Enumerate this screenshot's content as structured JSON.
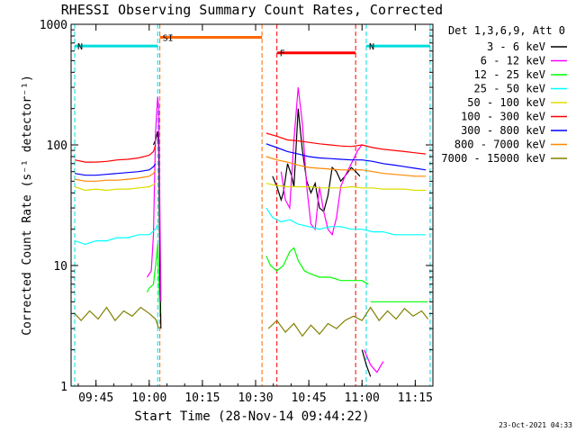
{
  "chart_data": {
    "type": "line",
    "title": "RHESSI Observing Summary Count Rates, Corrected",
    "xlabel": "Start Time (28-Nov-14 09:44:22)",
    "ylabel": "Corrected Count Rate (s⁻¹ detector⁻¹)",
    "footer": "23-Oct-2021 04:33",
    "y_scale": "log",
    "ylim": [
      1,
      1000
    ],
    "xlim_minutes": [
      9.633,
      11.333
    ],
    "x_ticks": [
      "09:45",
      "10:00",
      "10:15",
      "10:30",
      "10:45",
      "11:00",
      "11:15"
    ],
    "x_tick_minutes": [
      9.75,
      10.0,
      10.25,
      10.5,
      10.75,
      11.0,
      11.25
    ],
    "y_ticks": [
      "1",
      "10",
      "100",
      "1000"
    ],
    "y_tick_values": [
      1,
      10,
      100,
      1000
    ],
    "legend_title": "Det 1,3,6,9, Att 0",
    "legend_position": "right",
    "state_bars": [
      {
        "label": "SI",
        "color": "#ff6600",
        "start": 10.05,
        "end": 10.53,
        "level": 780
      },
      {
        "label": "N",
        "color": "#00dddd",
        "start": 9.65,
        "end": 10.04,
        "level": 660
      },
      {
        "label": "N",
        "color": "#00dddd",
        "start": 11.02,
        "end": 11.32,
        "level": 660
      },
      {
        "label": "F",
        "color": "#ff0000",
        "start": 10.6,
        "end": 10.97,
        "level": 580
      }
    ],
    "series": [
      {
        "name": "3 - 6 keV",
        "color": "#000000",
        "segments": [
          [
            [
              10.02,
              100
            ],
            [
              10.03,
              110
            ],
            [
              10.04,
              130
            ],
            [
              10.045,
              95
            ],
            [
              10.05,
              10
            ],
            [
              10.055,
              3
            ]
          ],
          [
            [
              10.58,
              55
            ],
            [
              10.6,
              45
            ],
            [
              10.62,
              35
            ],
            [
              10.63,
              40
            ],
            [
              10.65,
              70
            ],
            [
              10.67,
              55
            ],
            [
              10.68,
              45
            ],
            [
              10.7,
              200
            ],
            [
              10.72,
              90
            ],
            [
              10.74,
              50
            ],
            [
              10.76,
              40
            ],
            [
              10.78,
              48
            ],
            [
              10.8,
              30
            ],
            [
              10.82,
              28
            ],
            [
              10.84,
              38
            ],
            [
              10.86,
              65
            ],
            [
              10.88,
              60
            ],
            [
              10.9,
              50
            ],
            [
              10.92,
              55
            ],
            [
              10.95,
              65
            ],
            [
              10.97,
              60
            ],
            [
              10.99,
              55
            ]
          ],
          [
            [
              11.0,
              2
            ],
            [
              11.02,
              1.5
            ],
            [
              11.04,
              1.2
            ]
          ]
        ]
      },
      {
        "name": "6 - 12 keV",
        "color": "#ff00ff",
        "segments": [
          [
            [
              9.99,
              8
            ],
            [
              10.01,
              9
            ],
            [
              10.02,
              18
            ],
            [
              10.03,
              130
            ],
            [
              10.04,
              250
            ],
            [
              10.045,
              200
            ],
            [
              10.05,
              30
            ],
            [
              10.055,
              5
            ]
          ],
          [
            [
              10.62,
              60
            ],
            [
              10.64,
              35
            ],
            [
              10.66,
              30
            ],
            [
              10.68,
              110
            ],
            [
              10.7,
              300
            ],
            [
              10.72,
              150
            ],
            [
              10.74,
              45
            ],
            [
              10.76,
              22
            ],
            [
              10.78,
              20
            ],
            [
              10.8,
              45
            ],
            [
              10.82,
              28
            ],
            [
              10.84,
              20
            ],
            [
              10.86,
              18
            ],
            [
              10.88,
              25
            ],
            [
              10.9,
              45
            ],
            [
              10.92,
              55
            ],
            [
              10.95,
              70
            ],
            [
              10.98,
              90
            ],
            [
              11.0,
              100
            ]
          ],
          [
            [
              11.01,
              2
            ],
            [
              11.04,
              1.5
            ],
            [
              11.07,
              1.3
            ],
            [
              11.1,
              1.6
            ]
          ]
        ]
      },
      {
        "name": "12 - 25 keV",
        "color": "#00ff00",
        "segments": [
          [
            [
              9.99,
              6
            ],
            [
              10.0,
              6.5
            ],
            [
              10.02,
              7
            ],
            [
              10.03,
              10
            ],
            [
              10.04,
              15
            ],
            [
              10.05,
              4
            ]
          ],
          [
            [
              10.55,
              12
            ],
            [
              10.57,
              10
            ],
            [
              10.6,
              9
            ],
            [
              10.63,
              10
            ],
            [
              10.66,
              13
            ],
            [
              10.68,
              14
            ],
            [
              10.7,
              11
            ],
            [
              10.73,
              9
            ],
            [
              10.76,
              8.5
            ],
            [
              10.8,
              8
            ],
            [
              10.85,
              8
            ],
            [
              10.9,
              7.5
            ],
            [
              10.95,
              7.5
            ],
            [
              11.0,
              7.5
            ],
            [
              11.03,
              7
            ]
          ],
          [
            [
              11.04,
              5
            ],
            [
              11.08,
              5
            ],
            [
              11.12,
              5
            ],
            [
              11.16,
              5
            ],
            [
              11.2,
              5
            ],
            [
              11.24,
              5
            ],
            [
              11.28,
              5
            ],
            [
              11.31,
              5
            ]
          ]
        ]
      },
      {
        "name": "25 - 50 keV",
        "color": "#00ffff",
        "segments": [
          [
            [
              9.65,
              16
            ],
            [
              9.7,
              15
            ],
            [
              9.75,
              16
            ],
            [
              9.8,
              16
            ],
            [
              9.85,
              17
            ],
            [
              9.9,
              17
            ],
            [
              9.95,
              18
            ],
            [
              10.0,
              18
            ],
            [
              10.03,
              20
            ],
            [
              10.04,
              22
            ]
          ],
          [
            [
              10.55,
              30
            ],
            [
              10.58,
              25
            ],
            [
              10.62,
              23
            ],
            [
              10.66,
              24
            ],
            [
              10.7,
              22
            ],
            [
              10.75,
              21
            ],
            [
              10.8,
              20
            ],
            [
              10.85,
              21
            ],
            [
              10.9,
              21
            ],
            [
              10.95,
              20
            ],
            [
              11.0,
              20
            ],
            [
              11.05,
              19
            ],
            [
              11.1,
              19
            ],
            [
              11.15,
              18
            ],
            [
              11.2,
              18
            ],
            [
              11.25,
              18
            ],
            [
              11.3,
              18
            ]
          ]
        ]
      },
      {
        "name": "50 - 100 keV",
        "color": "#dddd00",
        "segments": [
          [
            [
              9.65,
              45
            ],
            [
              9.7,
              42
            ],
            [
              9.75,
              43
            ],
            [
              9.8,
              42
            ],
            [
              9.85,
              43
            ],
            [
              9.9,
              43
            ],
            [
              9.95,
              44
            ],
            [
              10.0,
              45
            ],
            [
              10.03,
              48
            ]
          ],
          [
            [
              10.55,
              48
            ],
            [
              10.6,
              46
            ],
            [
              10.65,
              45
            ],
            [
              10.7,
              45
            ],
            [
              10.75,
              45
            ],
            [
              10.8,
              44
            ],
            [
              10.85,
              44
            ],
            [
              10.9,
              44
            ],
            [
              10.95,
              45
            ],
            [
              11.0,
              44
            ],
            [
              11.05,
              44
            ],
            [
              11.1,
              43
            ],
            [
              11.15,
              43
            ],
            [
              11.2,
              43
            ],
            [
              11.25,
              42
            ],
            [
              11.3,
              42
            ]
          ]
        ]
      },
      {
        "name": "100 - 300 keV",
        "color": "#ff0000",
        "segments": [
          [
            [
              9.65,
              75
            ],
            [
              9.7,
              72
            ],
            [
              9.75,
              72
            ],
            [
              9.8,
              73
            ],
            [
              9.85,
              75
            ],
            [
              9.9,
              76
            ],
            [
              9.95,
              78
            ],
            [
              10.0,
              82
            ],
            [
              10.02,
              88
            ],
            [
              10.03,
              100
            ]
          ],
          [
            [
              10.55,
              125
            ],
            [
              10.6,
              118
            ],
            [
              10.65,
              110
            ],
            [
              10.7,
              108
            ],
            [
              10.75,
              105
            ],
            [
              10.8,
              102
            ],
            [
              10.85,
              100
            ],
            [
              10.9,
              98
            ],
            [
              10.95,
              97
            ],
            [
              11.0,
              100
            ],
            [
              11.05,
              95
            ],
            [
              11.1,
              92
            ],
            [
              11.15,
              90
            ],
            [
              11.2,
              88
            ],
            [
              11.25,
              86
            ],
            [
              11.3,
              84
            ]
          ]
        ]
      },
      {
        "name": "300 - 800 keV",
        "color": "#0000ff",
        "segments": [
          [
            [
              9.65,
              58
            ],
            [
              9.7,
              56
            ],
            [
              9.75,
              56
            ],
            [
              9.8,
              57
            ],
            [
              9.85,
              58
            ],
            [
              9.9,
              59
            ],
            [
              9.95,
              60
            ],
            [
              10.0,
              62
            ],
            [
              10.02,
              66
            ],
            [
              10.03,
              70
            ]
          ],
          [
            [
              10.55,
              102
            ],
            [
              10.6,
              95
            ],
            [
              10.65,
              88
            ],
            [
              10.7,
              84
            ],
            [
              10.75,
              80
            ],
            [
              10.8,
              78
            ],
            [
              10.85,
              77
            ],
            [
              10.9,
              76
            ],
            [
              10.95,
              75
            ],
            [
              11.0,
              75
            ],
            [
              11.05,
              73
            ],
            [
              11.1,
              70
            ],
            [
              11.15,
              68
            ],
            [
              11.2,
              66
            ],
            [
              11.25,
              64
            ],
            [
              11.3,
              62
            ]
          ]
        ]
      },
      {
        "name": "800 - 7000 keV",
        "color": "#ff8800",
        "segments": [
          [
            [
              9.65,
              52
            ],
            [
              9.7,
              50
            ],
            [
              9.75,
              50
            ],
            [
              9.8,
              51
            ],
            [
              9.85,
              51
            ],
            [
              9.9,
              52
            ],
            [
              9.95,
              53
            ],
            [
              10.0,
              55
            ],
            [
              10.02,
              58
            ],
            [
              10.03,
              62
            ]
          ],
          [
            [
              10.55,
              80
            ],
            [
              10.6,
              75
            ],
            [
              10.65,
              72
            ],
            [
              10.7,
              68
            ],
            [
              10.75,
              65
            ],
            [
              10.8,
              64
            ],
            [
              10.85,
              63
            ],
            [
              10.9,
              62
            ],
            [
              10.95,
              62
            ],
            [
              11.0,
              62
            ],
            [
              11.05,
              60
            ],
            [
              11.1,
              58
            ],
            [
              11.15,
              57
            ],
            [
              11.2,
              56
            ],
            [
              11.25,
              55
            ],
            [
              11.3,
              55
            ]
          ]
        ]
      },
      {
        "name": "7000 - 15000 keV",
        "color": "#808000",
        "segments": [
          [
            [
              9.65,
              4
            ],
            [
              9.68,
              3.5
            ],
            [
              9.72,
              4.2
            ],
            [
              9.76,
              3.6
            ],
            [
              9.8,
              4.5
            ],
            [
              9.84,
              3.5
            ],
            [
              9.88,
              4.2
            ],
            [
              9.92,
              3.8
            ],
            [
              9.96,
              4.5
            ],
            [
              10.0,
              4
            ],
            [
              10.03,
              3.6
            ],
            [
              10.045,
              3
            ]
          ],
          [
            [
              10.56,
              3
            ],
            [
              10.6,
              3.5
            ],
            [
              10.64,
              2.8
            ],
            [
              10.68,
              3.3
            ],
            [
              10.72,
              2.6
            ],
            [
              10.76,
              3.2
            ],
            [
              10.8,
              2.7
            ],
            [
              10.84,
              3.3
            ],
            [
              10.88,
              3
            ],
            [
              10.92,
              3.5
            ],
            [
              10.96,
              3.8
            ],
            [
              11.0,
              3.5
            ],
            [
              11.04,
              4.5
            ],
            [
              11.08,
              3.5
            ],
            [
              11.12,
              4.2
            ],
            [
              11.16,
              3.6
            ],
            [
              11.2,
              4.4
            ],
            [
              11.24,
              3.8
            ],
            [
              11.28,
              4.2
            ],
            [
              11.31,
              3.6
            ]
          ]
        ]
      }
    ]
  }
}
